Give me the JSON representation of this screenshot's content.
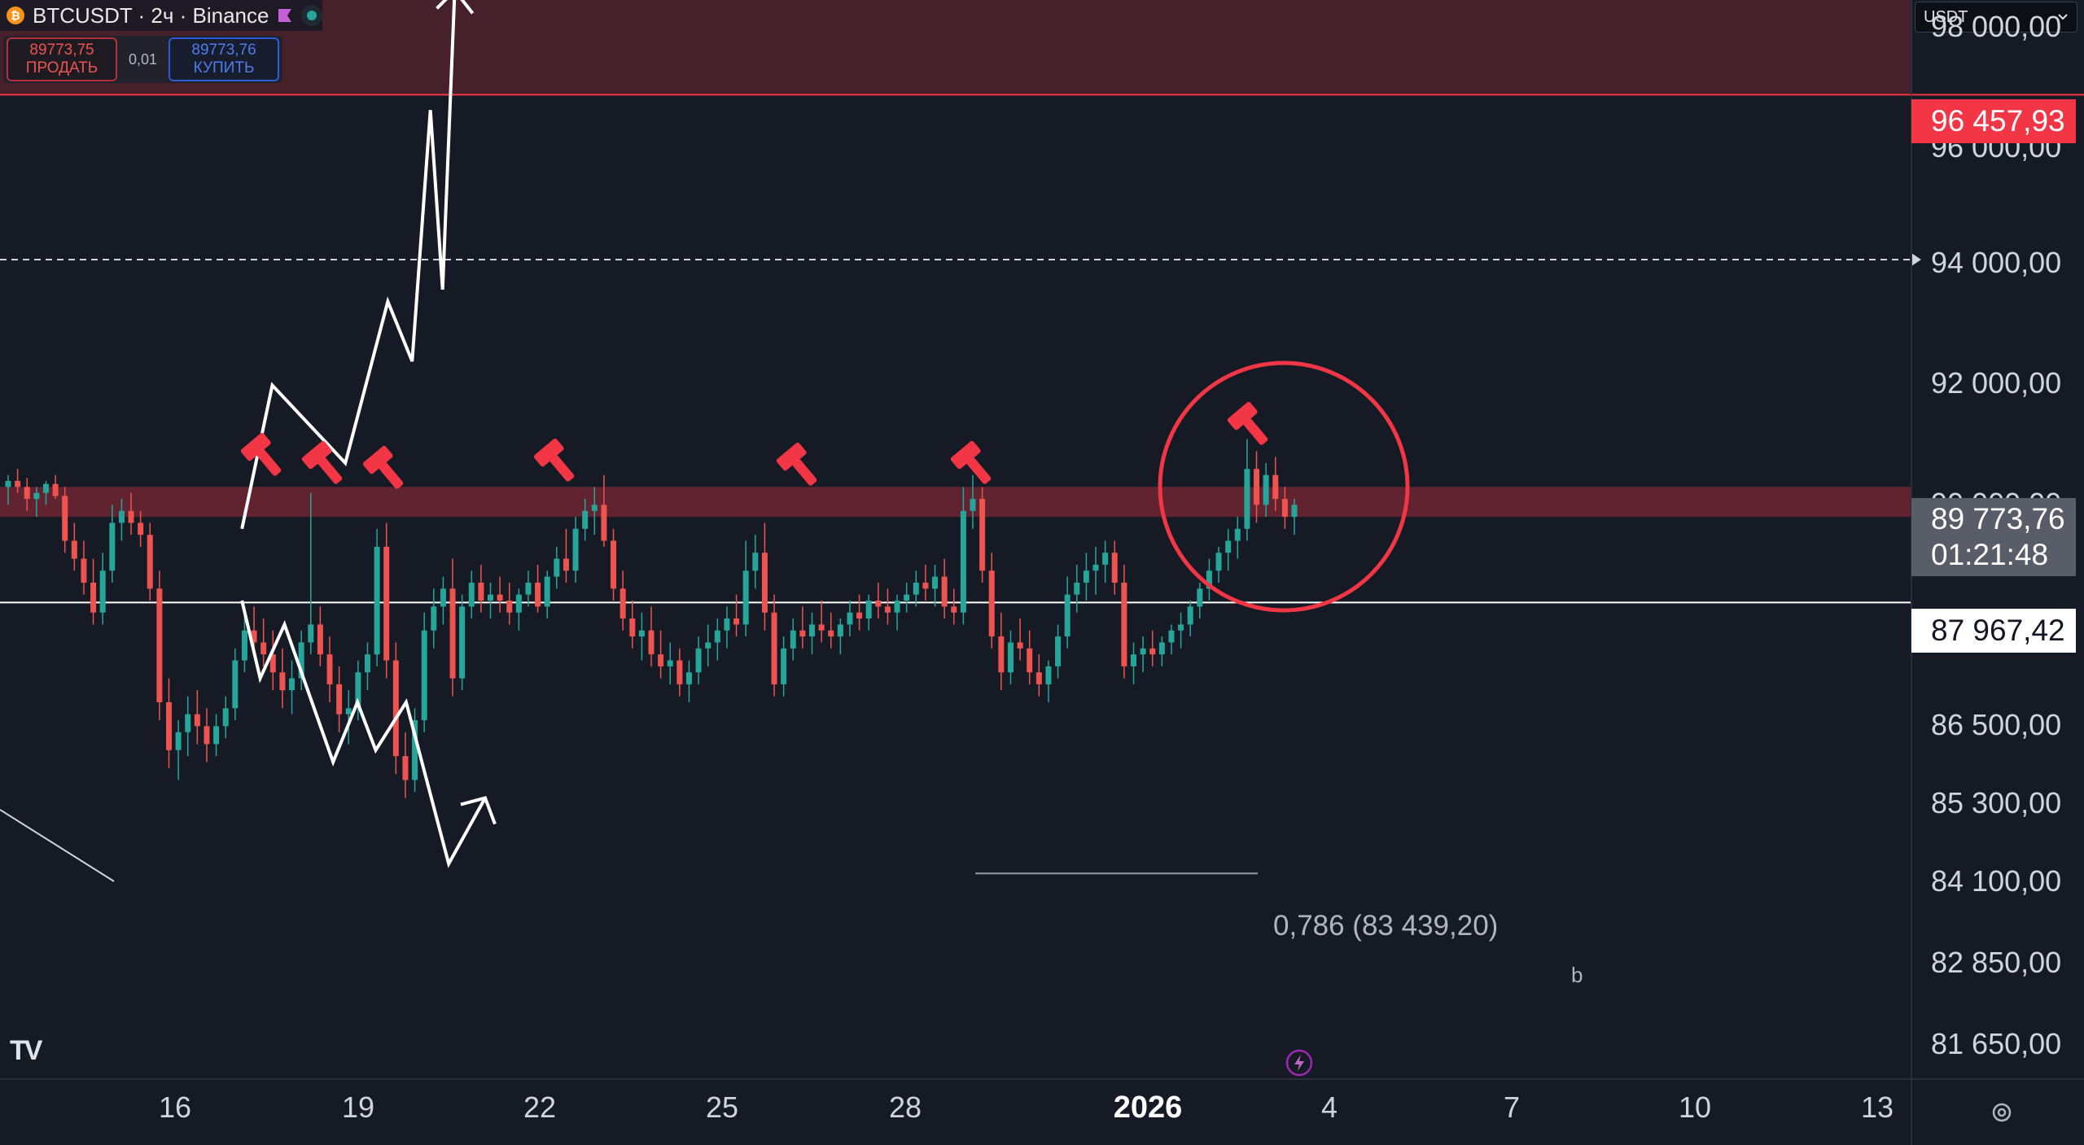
{
  "header": {
    "symbol_icon": "₿",
    "title": "BTCUSDT · 2ч · Binance",
    "flag_color": "#c561d8",
    "live_color": "#26a69a"
  },
  "trade": {
    "sell_price": "89773,75",
    "sell_label": "ПРОДАТЬ",
    "spread": "0,01",
    "buy_price": "89773,76",
    "buy_label": "КУПИТЬ"
  },
  "currency": {
    "selected": "USDT"
  },
  "price_axis": {
    "top_partial": "98 000,00",
    "labels": [
      "96 000,00",
      "94 000,00",
      "92 000,00",
      "90 000,00",
      "86 500,00",
      "85 300,00",
      "84 100,00",
      "82 850,00",
      "81 650,00"
    ]
  },
  "badges": {
    "resistance": "96 457,93",
    "current_price": "89 773,76",
    "countdown": "01:21:48",
    "support": "87 967,42"
  },
  "time_axis": {
    "labels": [
      "16",
      "19",
      "22",
      "25",
      "28",
      "2026",
      "4",
      "7",
      "10",
      "13"
    ]
  },
  "annotations": {
    "fib": "0,786 (83 439,20)",
    "wave_label": "b"
  },
  "colors": {
    "background": "#161a25",
    "up": "#26a69a",
    "down": "#ef5350",
    "resistance_zone": "rgba(242,54,69,0.22)",
    "supply_band": "rgba(242,54,69,0.35)",
    "hammer": "#f23645"
  },
  "icons": [
    "bitcoin-icon",
    "flag-icon",
    "live-dot-icon",
    "chevron-down-icon",
    "hammer-icon",
    "tradingview-logo",
    "bolt-icon",
    "settings-icon"
  ],
  "chart_data": {
    "type": "candlestick",
    "title": "",
    "xlabel": "",
    "ylabel": "",
    "ylim": [
      81000,
      98500
    ],
    "xrange": [
      "Dec 13",
      "Jan 13"
    ],
    "levels": [
      {
        "name": "resistance",
        "value": 96457.93,
        "style": "solid red"
      },
      {
        "name": "dashed",
        "value": 93700,
        "style": "dashed white"
      },
      {
        "name": "support",
        "value": 87967.42,
        "style": "solid white"
      }
    ],
    "zones": [
      {
        "from": 96457.93,
        "to": 98500
      },
      {
        "from": 89400,
        "to": 89900
      }
    ],
    "last_price": 89773.76,
    "fib_level": {
      "ratio": 0.786,
      "value": 83439.2
    },
    "scenarios": {
      "bullish": [
        [
          4.1,
          89200
        ],
        [
          4.6,
          91600
        ],
        [
          5.8,
          90300
        ],
        [
          6.5,
          93000
        ],
        [
          6.9,
          92000
        ],
        [
          7.2,
          96200
        ],
        [
          7.4,
          93200
        ],
        [
          7.6,
          98200
        ]
      ],
      "bearish": [
        [
          4.1,
          88000
        ],
        [
          4.4,
          86700
        ],
        [
          4.8,
          87600
        ],
        [
          5.6,
          85300
        ],
        [
          6.0,
          86300
        ],
        [
          6.3,
          85500
        ],
        [
          6.8,
          86300
        ],
        [
          7.5,
          83600
        ],
        [
          8.1,
          84700
        ]
      ]
    },
    "candles": [
      [
        89900,
        90100,
        89600,
        90000
      ],
      [
        90000,
        90200,
        89800,
        89900
      ],
      [
        89900,
        90050,
        89500,
        89700
      ],
      [
        89700,
        89900,
        89400,
        89800
      ],
      [
        89800,
        90000,
        89600,
        89950
      ],
      [
        89950,
        90100,
        89700,
        89750
      ],
      [
        89750,
        89900,
        88800,
        89000
      ],
      [
        89000,
        89300,
        88500,
        88700
      ],
      [
        88700,
        89000,
        88100,
        88300
      ],
      [
        88300,
        88700,
        87600,
        87800
      ],
      [
        87800,
        88800,
        87600,
        88500
      ],
      [
        88500,
        89600,
        88300,
        89300
      ],
      [
        89300,
        89700,
        89000,
        89500
      ],
      [
        89500,
        89800,
        89100,
        89300
      ],
      [
        89300,
        89500,
        88900,
        89100
      ],
      [
        89100,
        89300,
        88000,
        88200
      ],
      [
        88200,
        88500,
        86000,
        86300
      ],
      [
        86300,
        86700,
        85200,
        85500
      ],
      [
        85500,
        86000,
        85000,
        85800
      ],
      [
        85800,
        86400,
        85400,
        86100
      ],
      [
        86100,
        86500,
        85600,
        85900
      ],
      [
        85900,
        86200,
        85300,
        85600
      ],
      [
        85600,
        86100,
        85400,
        85900
      ],
      [
        85900,
        86400,
        85700,
        86200
      ],
      [
        86200,
        87200,
        86000,
        87000
      ],
      [
        87000,
        87800,
        86800,
        87500
      ],
      [
        87500,
        87900,
        87100,
        87300
      ],
      [
        87300,
        87700,
        86900,
        87100
      ],
      [
        87100,
        87500,
        86500,
        86800
      ],
      [
        86800,
        87200,
        86200,
        86500
      ],
      [
        86500,
        87000,
        86100,
        86700
      ],
      [
        86700,
        87500,
        86500,
        87300
      ],
      [
        87300,
        89800,
        87100,
        87600
      ],
      [
        87600,
        87900,
        86900,
        87100
      ],
      [
        87100,
        87400,
        86300,
        86600
      ],
      [
        86600,
        86900,
        85800,
        86100
      ],
      [
        86100,
        86500,
        85600,
        86200
      ],
      [
        86200,
        87000,
        86000,
        86800
      ],
      [
        86800,
        87300,
        86500,
        87100
      ],
      [
        87100,
        89200,
        86900,
        88900
      ],
      [
        88900,
        89300,
        86700,
        87000
      ],
      [
        87000,
        87300,
        85100,
        85400
      ],
      [
        85400,
        85800,
        84700,
        85000
      ],
      [
        85000,
        86200,
        84800,
        86000
      ],
      [
        86000,
        87800,
        85800,
        87500
      ],
      [
        87500,
        88200,
        87200,
        87900
      ],
      [
        87900,
        88400,
        87600,
        88200
      ],
      [
        88200,
        88700,
        86400,
        86700
      ],
      [
        86700,
        88100,
        86500,
        87900
      ],
      [
        87900,
        88500,
        87700,
        88300
      ],
      [
        88300,
        88600,
        87800,
        88000
      ],
      [
        88000,
        88300,
        87700,
        88100
      ],
      [
        88100,
        88400,
        87800,
        88000
      ],
      [
        88000,
        88300,
        87600,
        87800
      ],
      [
        87800,
        88200,
        87500,
        88100
      ],
      [
        88100,
        88500,
        87900,
        88300
      ],
      [
        88300,
        88600,
        87800,
        87900
      ],
      [
        87900,
        88500,
        87700,
        88400
      ],
      [
        88400,
        88900,
        88200,
        88700
      ],
      [
        88700,
        89200,
        88300,
        88500
      ],
      [
        88500,
        89400,
        88300,
        89200
      ],
      [
        89200,
        89700,
        89000,
        89500
      ],
      [
        89500,
        89900,
        89100,
        89600
      ],
      [
        89600,
        90100,
        88900,
        89000
      ],
      [
        89000,
        89200,
        88000,
        88200
      ],
      [
        88200,
        88500,
        87500,
        87700
      ],
      [
        87700,
        88000,
        87200,
        87400
      ],
      [
        87400,
        87800,
        87000,
        87500
      ],
      [
        87500,
        87900,
        86900,
        87100
      ],
      [
        87100,
        87500,
        86700,
        86900
      ],
      [
        86900,
        87300,
        86600,
        87000
      ],
      [
        87000,
        87200,
        86400,
        86600
      ],
      [
        86600,
        87000,
        86300,
        86800
      ],
      [
        86800,
        87400,
        86600,
        87200
      ],
      [
        87200,
        87600,
        86900,
        87300
      ],
      [
        87300,
        87700,
        87000,
        87500
      ],
      [
        87500,
        87900,
        87200,
        87700
      ],
      [
        87700,
        88100,
        87400,
        87600
      ],
      [
        87600,
        89000,
        87400,
        88500
      ],
      [
        88500,
        89100,
        88200,
        88800
      ],
      [
        88800,
        89300,
        87500,
        87800
      ],
      [
        87800,
        88100,
        86400,
        86600
      ],
      [
        86600,
        87400,
        86400,
        87200
      ],
      [
        87200,
        87700,
        87000,
        87500
      ],
      [
        87500,
        87900,
        87200,
        87400
      ],
      [
        87400,
        87800,
        87100,
        87600
      ],
      [
        87600,
        88000,
        87300,
        87500
      ],
      [
        87500,
        87800,
        87200,
        87400
      ],
      [
        87400,
        87700,
        87100,
        87600
      ],
      [
        87600,
        88000,
        87400,
        87800
      ],
      [
        87800,
        88100,
        87500,
        87700
      ],
      [
        87700,
        88100,
        87500,
        88000
      ],
      [
        88000,
        88300,
        87700,
        87900
      ],
      [
        87900,
        88200,
        87600,
        87800
      ],
      [
        87800,
        88100,
        87500,
        88000
      ],
      [
        88000,
        88300,
        87800,
        88100
      ],
      [
        88100,
        88500,
        87900,
        88300
      ],
      [
        88300,
        88600,
        88000,
        88200
      ],
      [
        88200,
        88600,
        87900,
        88400
      ],
      [
        88400,
        88700,
        87700,
        87900
      ],
      [
        87900,
        88200,
        87600,
        87800
      ],
      [
        87800,
        89900,
        87600,
        89500
      ],
      [
        89500,
        90100,
        89200,
        89700
      ],
      [
        89700,
        89900,
        88300,
        88500
      ],
      [
        88500,
        88800,
        87200,
        87400
      ],
      [
        87400,
        87800,
        86500,
        86800
      ],
      [
        86800,
        87500,
        86600,
        87300
      ],
      [
        87300,
        87700,
        87000,
        87200
      ],
      [
        87200,
        87500,
        86600,
        86800
      ],
      [
        86800,
        87100,
        86400,
        86600
      ],
      [
        86600,
        87000,
        86300,
        86900
      ],
      [
        86900,
        87600,
        86700,
        87400
      ],
      [
        87400,
        88400,
        87200,
        88100
      ],
      [
        88100,
        88600,
        87800,
        88300
      ],
      [
        88300,
        88800,
        88000,
        88500
      ],
      [
        88500,
        88900,
        88100,
        88600
      ],
      [
        88600,
        89000,
        88300,
        88800
      ],
      [
        88800,
        89000,
        88100,
        88300
      ],
      [
        88300,
        88600,
        86700,
        86900
      ],
      [
        86900,
        87300,
        86600,
        87100
      ],
      [
        87100,
        87400,
        86800,
        87200
      ],
      [
        87200,
        87500,
        86900,
        87100
      ],
      [
        87100,
        87400,
        86900,
        87300
      ],
      [
        87300,
        87600,
        87100,
        87500
      ],
      [
        87500,
        87800,
        87200,
        87600
      ],
      [
        87600,
        88000,
        87400,
        87900
      ],
      [
        87900,
        88300,
        87700,
        88200
      ],
      [
        88200,
        88700,
        88000,
        88500
      ],
      [
        88500,
        88900,
        88300,
        88800
      ],
      [
        88800,
        89200,
        88500,
        89000
      ],
      [
        89000,
        89400,
        88700,
        89200
      ],
      [
        89200,
        90700,
        89000,
        90200
      ],
      [
        90200,
        90500,
        89300,
        89600
      ],
      [
        89600,
        90300,
        89400,
        90100
      ],
      [
        90100,
        90400,
        89500,
        89700
      ],
      [
        89700,
        89900,
        89200,
        89400
      ],
      [
        89400,
        89700,
        89100,
        89600
      ]
    ]
  }
}
